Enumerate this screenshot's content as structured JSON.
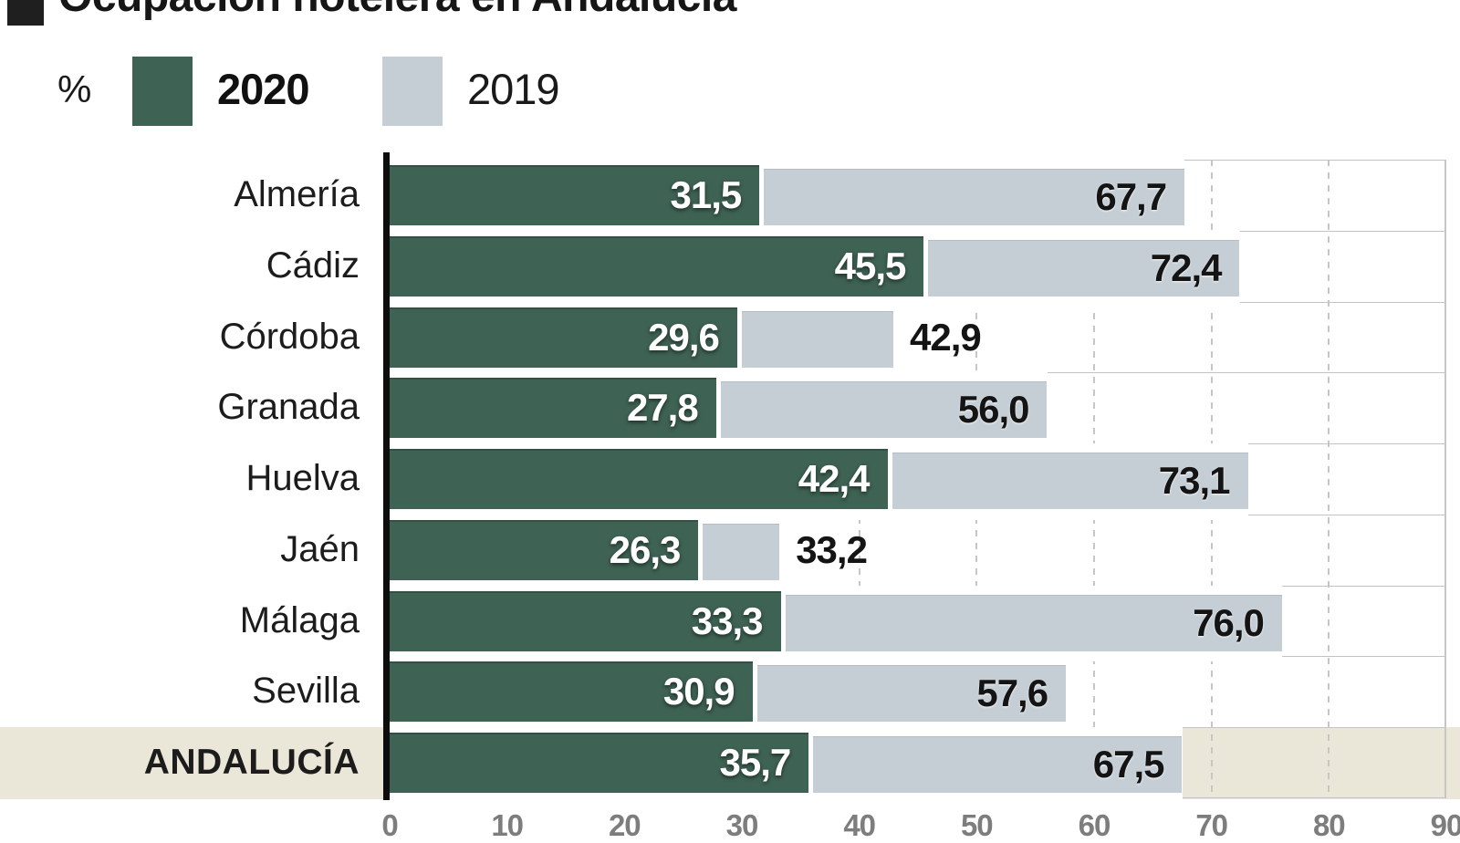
{
  "title": {
    "text": "Ocupación hotelera en Andalucía"
  },
  "legend": {
    "unit": "%",
    "items": [
      {
        "label": "2020",
        "color": "#3e6253"
      },
      {
        "label": "2019",
        "color": "#c5ced5"
      }
    ]
  },
  "colors": {
    "bar_2020": "#3e6253",
    "bar_2019": "#c5ced5",
    "highlight_bg": "#ebe7d8",
    "grid_line": "#c6c6c6",
    "row_line": "#c3c3c3",
    "axis": "#0d0d0d",
    "tick_label": "#7d7d7d",
    "value_on_green": "#ffffff",
    "value_on_gray": "#141414"
  },
  "chart_data": {
    "type": "bar",
    "orientation": "horizontal",
    "title": "Ocupación hotelera en Andalucía",
    "unit": "%",
    "legend_position": "top",
    "grid": "dashed-vertical",
    "xlim": [
      0,
      90
    ],
    "x_ticks": [
      0,
      10,
      20,
      30,
      40,
      50,
      60,
      70,
      80,
      90
    ],
    "grid_values": [
      10,
      20,
      30,
      40,
      50,
      60,
      70,
      80
    ],
    "categories": [
      "Almería",
      "Cádiz",
      "Córdoba",
      "Granada",
      "Huelva",
      "Jaén",
      "Málaga",
      "Sevilla",
      "ANDALUCÍA"
    ],
    "series": [
      {
        "name": "2020",
        "color": "#3e6253",
        "values": [
          31.5,
          45.5,
          29.6,
          27.8,
          42.4,
          26.3,
          33.3,
          30.9,
          35.7
        ]
      },
      {
        "name": "2019",
        "color": "#c5ced5",
        "values": [
          67.7,
          72.4,
          42.9,
          56.0,
          73.1,
          33.2,
          76.0,
          57.6,
          67.5
        ]
      }
    ],
    "rows": [
      {
        "label": "Almería",
        "v2020": 31.5,
        "v2019": 67.7,
        "d2020": "31,5",
        "d2019": "67,7",
        "outside": false,
        "highlight": false
      },
      {
        "label": "Cádiz",
        "v2020": 45.5,
        "v2019": 72.4,
        "d2020": "45,5",
        "d2019": "72,4",
        "outside": false,
        "highlight": false
      },
      {
        "label": "Córdoba",
        "v2020": 29.6,
        "v2019": 42.9,
        "d2020": "29,6",
        "d2019": "42,9",
        "outside": true,
        "highlight": false
      },
      {
        "label": "Granada",
        "v2020": 27.8,
        "v2019": 56.0,
        "d2020": "27,8",
        "d2019": "56,0",
        "outside": false,
        "highlight": false
      },
      {
        "label": "Huelva",
        "v2020": 42.4,
        "v2019": 73.1,
        "d2020": "42,4",
        "d2019": "73,1",
        "outside": false,
        "highlight": false
      },
      {
        "label": "Jaén",
        "v2020": 26.3,
        "v2019": 33.2,
        "d2020": "26,3",
        "d2019": "33,2",
        "outside": true,
        "highlight": false
      },
      {
        "label": "Málaga",
        "v2020": 33.3,
        "v2019": 76.0,
        "d2020": "33,3",
        "d2019": "76,0",
        "outside": false,
        "highlight": false
      },
      {
        "label": "Sevilla",
        "v2020": 30.9,
        "v2019": 57.6,
        "d2020": "30,9",
        "d2019": "57,6",
        "outside": false,
        "highlight": false
      },
      {
        "label": "ANDALUCÍA",
        "v2020": 35.7,
        "v2019": 67.5,
        "d2020": "35,7",
        "d2019": "67,5",
        "outside": false,
        "highlight": true
      }
    ]
  }
}
